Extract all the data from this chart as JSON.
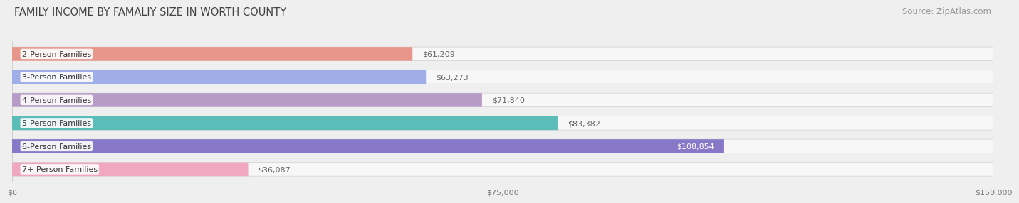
{
  "title": "FAMILY INCOME BY FAMALIY SIZE IN WORTH COUNTY",
  "source": "Source: ZipAtlas.com",
  "categories": [
    "2-Person Families",
    "3-Person Families",
    "4-Person Families",
    "5-Person Families",
    "6-Person Families",
    "7+ Person Families"
  ],
  "values": [
    61209,
    63273,
    71840,
    83382,
    108854,
    36087
  ],
  "bar_colors": [
    "#e8958a",
    "#a0aee8",
    "#b89cc8",
    "#5bbcb8",
    "#8878c8",
    "#f0a8c0"
  ],
  "value_labels": [
    "$61,209",
    "$63,273",
    "$71,840",
    "$83,382",
    "$108,854",
    "$36,087"
  ],
  "xlim": [
    0,
    150000
  ],
  "xticks": [
    0,
    75000,
    150000
  ],
  "xtick_labels": [
    "$0",
    "$75,000",
    "$150,000"
  ],
  "background_color": "#efefef",
  "bar_bg_color": "#f7f7f7",
  "title_fontsize": 10.5,
  "source_fontsize": 8.5,
  "label_fontsize": 8,
  "value_fontsize": 8,
  "bar_height": 0.6
}
